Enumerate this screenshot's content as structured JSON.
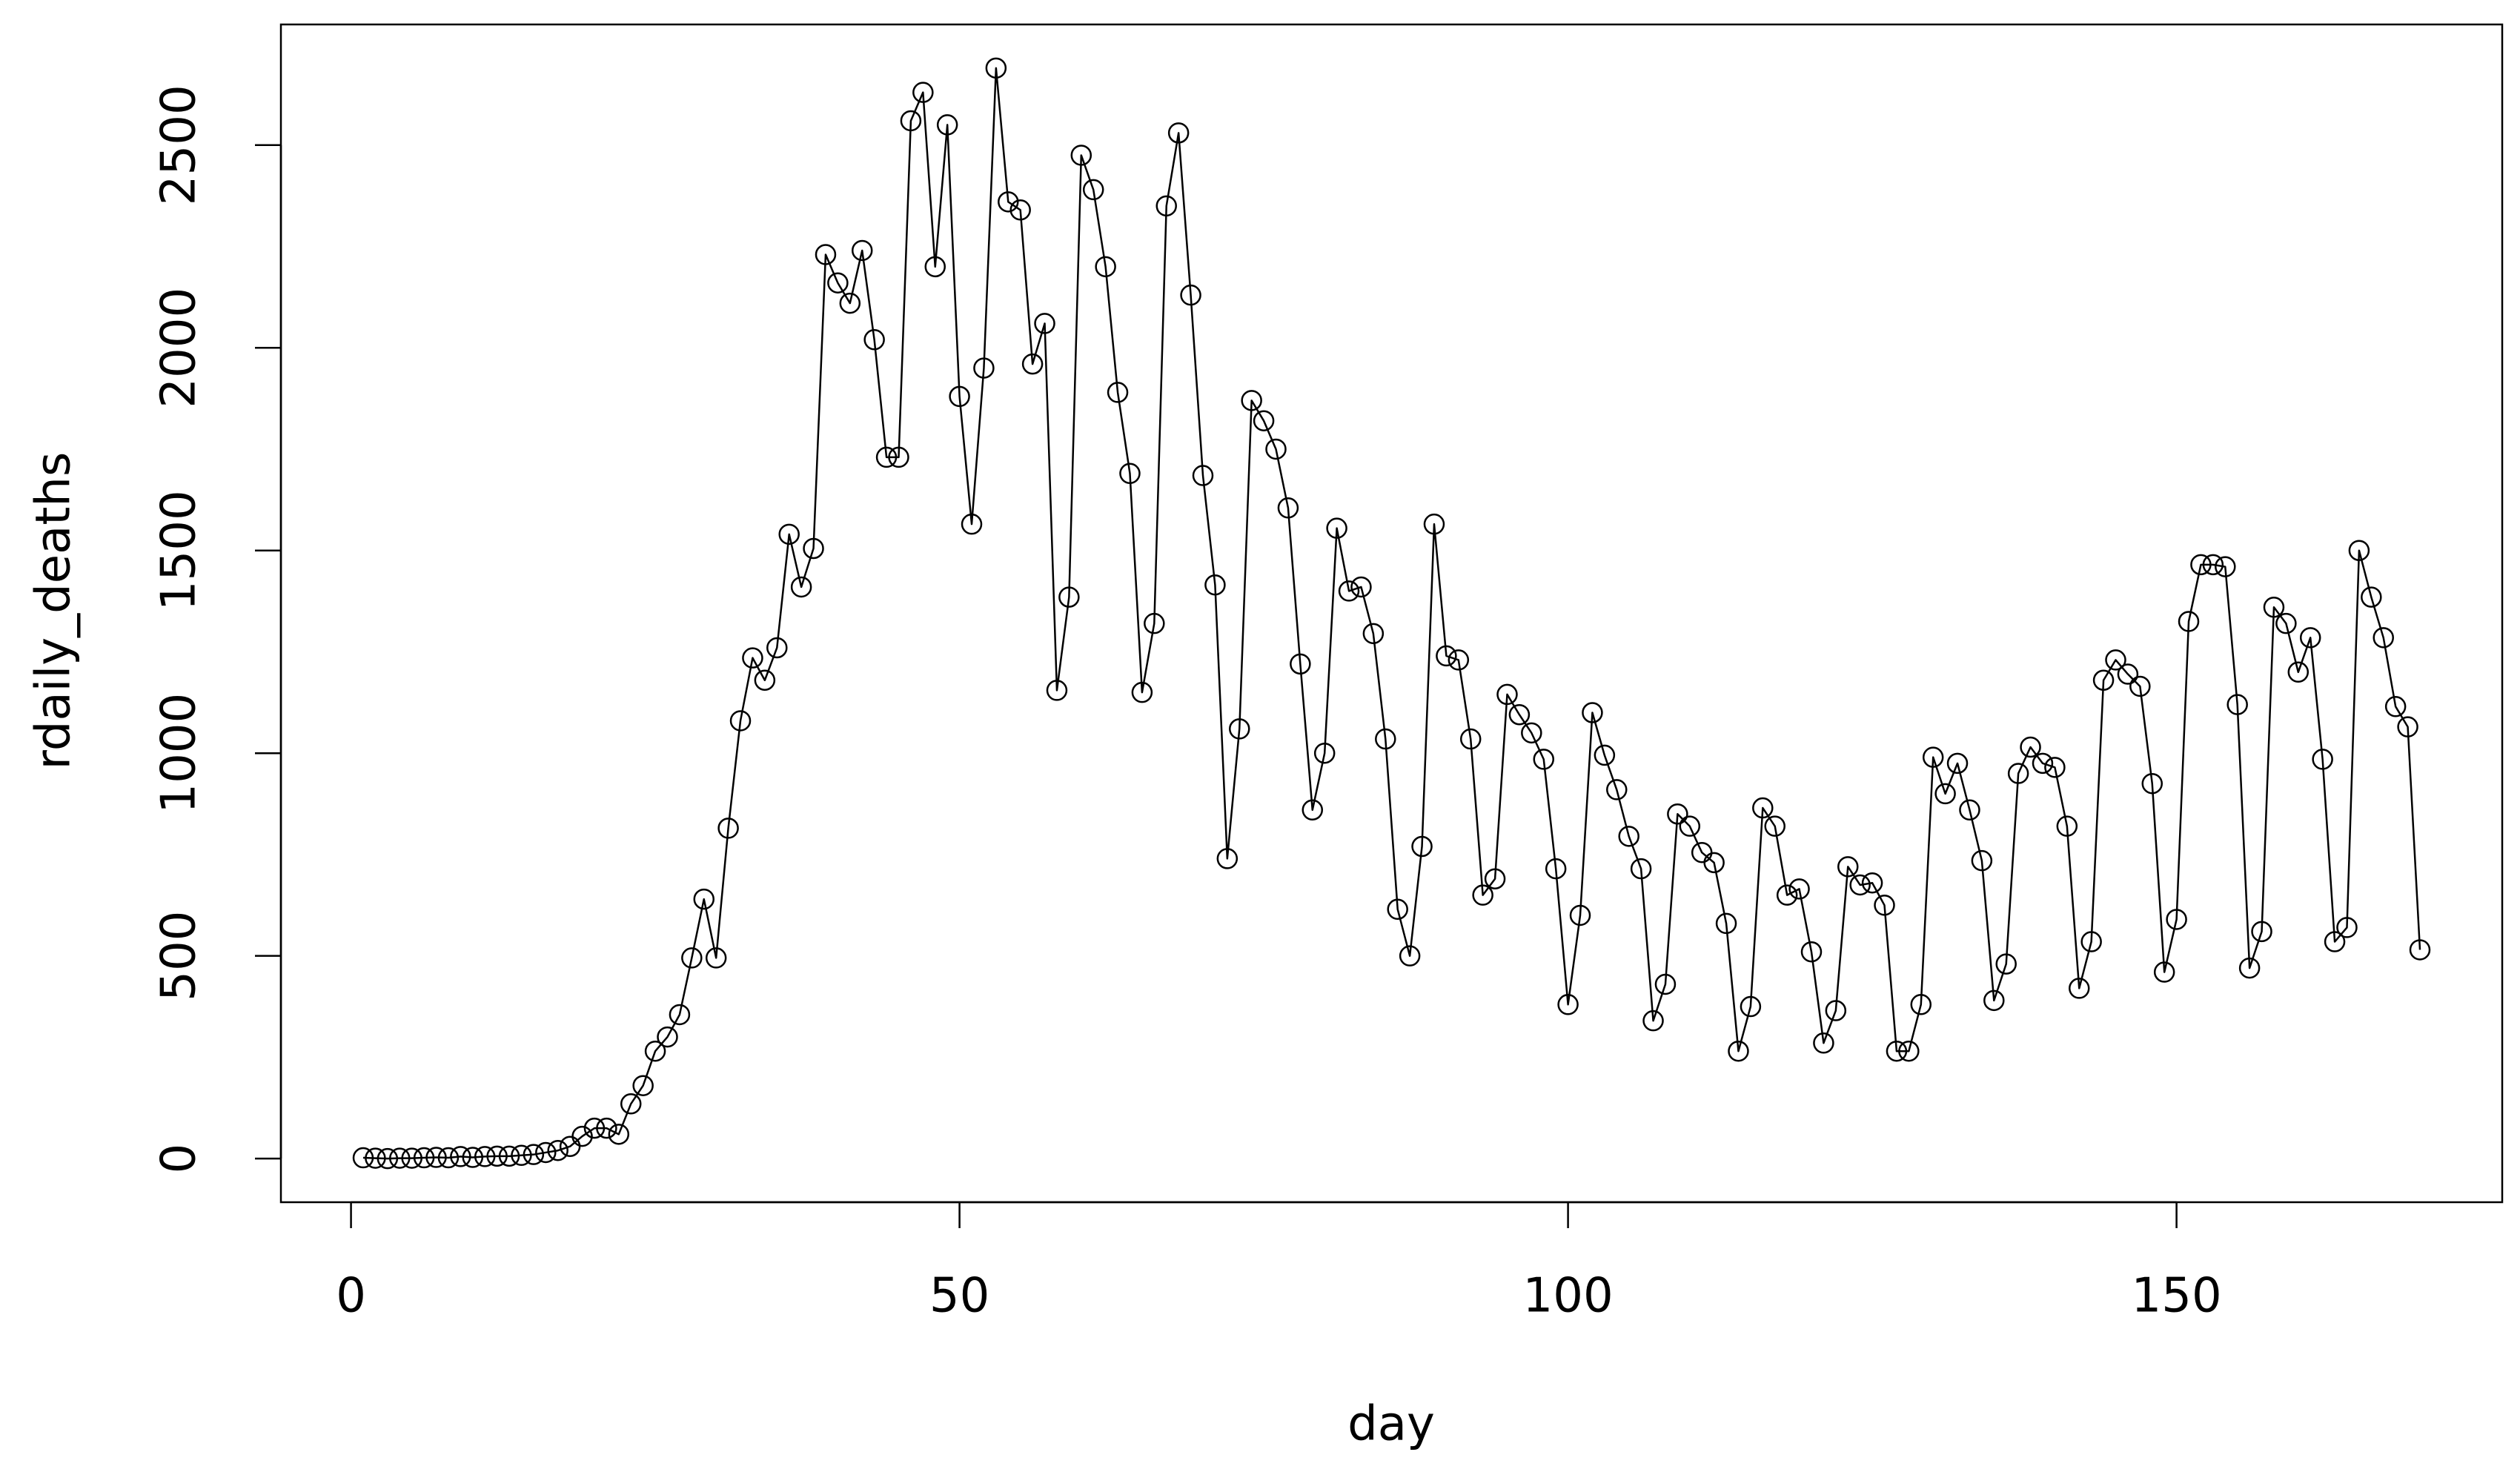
{
  "chart_data": {
    "type": "line",
    "markers": true,
    "color": "#000000",
    "xlabel": "day",
    "ylabel": "rdaily_deaths",
    "x": [
      1,
      2,
      3,
      4,
      5,
      6,
      7,
      8,
      9,
      10,
      11,
      12,
      13,
      14,
      15,
      16,
      17,
      18,
      19,
      20,
      21,
      22,
      23,
      24,
      25,
      26,
      27,
      28,
      29,
      30,
      31,
      32,
      33,
      34,
      35,
      36,
      37,
      38,
      39,
      40,
      41,
      42,
      43,
      44,
      45,
      46,
      47,
      48,
      49,
      50,
      51,
      52,
      53,
      54,
      55,
      56,
      57,
      58,
      59,
      60,
      61,
      62,
      63,
      64,
      65,
      66,
      67,
      68,
      69,
      70,
      71,
      72,
      73,
      74,
      75,
      76,
      77,
      78,
      79,
      80,
      81,
      82,
      83,
      84,
      85,
      86,
      87,
      88,
      89,
      90,
      91,
      92,
      93,
      94,
      95,
      96,
      97,
      98,
      99,
      100,
      101,
      102,
      103,
      104,
      105,
      106,
      107,
      108,
      109,
      110,
      111,
      112,
      113,
      114,
      115,
      116,
      117,
      118,
      119,
      120,
      121,
      122,
      123,
      124,
      125,
      126,
      127,
      128,
      129,
      130,
      131,
      132,
      133,
      134,
      135,
      136,
      137,
      138,
      139,
      140,
      141,
      142,
      143,
      144,
      145,
      146,
      147,
      148,
      149,
      150,
      151,
      152,
      153,
      154,
      155,
      156,
      157,
      158,
      159,
      160,
      161,
      162,
      163,
      164,
      165,
      166,
      167,
      168,
      169,
      170
    ],
    "values": [
      2,
      1,
      0,
      1,
      1,
      2,
      3,
      2,
      5,
      3,
      5,
      6,
      6,
      8,
      10,
      15,
      20,
      30,
      55,
      75,
      75,
      60,
      135,
      180,
      265,
      300,
      355,
      495,
      640,
      495,
      815,
      1080,
      1235,
      1180,
      1260,
      1540,
      1410,
      1505,
      2230,
      2160,
      2110,
      2240,
      2020,
      1730,
      1730,
      2560,
      2630,
      2200,
      2550,
      1880,
      1565,
      1950,
      2690,
      2360,
      2340,
      1960,
      2060,
      1155,
      1385,
      2475,
      2390,
      2200,
      1890,
      1690,
      1150,
      1320,
      2350,
      2530,
      2130,
      1685,
      1415,
      740,
      1060,
      1870,
      1820,
      1750,
      1605,
      1220,
      860,
      1000,
      1555,
      1400,
      1410,
      1295,
      1035,
      615,
      500,
      770,
      1565,
      1240,
      1230,
      1035,
      650,
      690,
      1145,
      1095,
      1050,
      985,
      715,
      380,
      600,
      1100,
      995,
      910,
      795,
      715,
      340,
      430,
      850,
      820,
      755,
      730,
      580,
      265,
      375,
      865,
      820,
      650,
      665,
      510,
      285,
      365,
      720,
      675,
      680,
      625,
      265,
      265,
      380,
      990,
      900,
      975,
      860,
      735,
      390,
      480,
      950,
      1015,
      975,
      965,
      820,
      420,
      535,
      1180,
      1230,
      1195,
      1165,
      925,
      460,
      590,
      1325,
      1465,
      1465,
      1460,
      1120,
      470,
      560,
      1360,
      1320,
      1200,
      1285,
      985,
      535,
      570,
      1500,
      1385,
      1285,
      1115,
      1065,
      515
    ],
    "xlim": [
      -5.76,
      176.76
    ],
    "ylim": [
      -107.6,
      2797.6
    ],
    "xticks": [
      0,
      50,
      100,
      150
    ],
    "yticks": [
      0,
      500,
      1000,
      1500,
      2000,
      2500
    ]
  }
}
